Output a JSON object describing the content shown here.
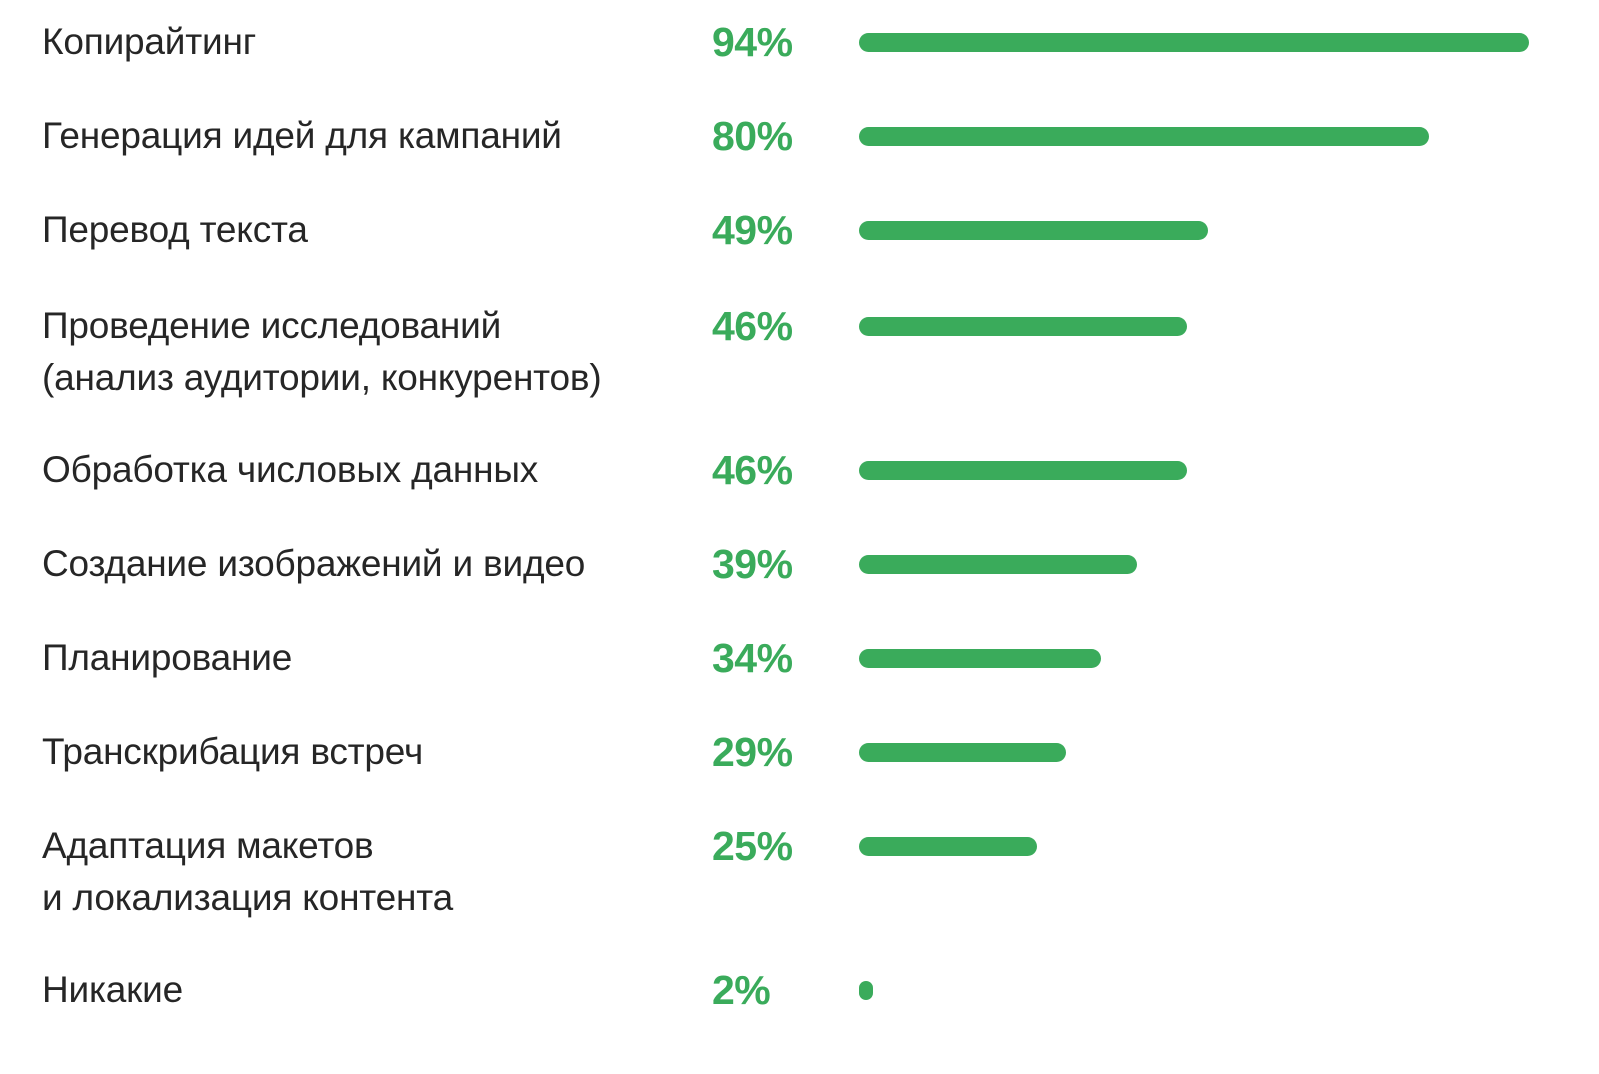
{
  "colors": {
    "bar": "#3aab5b",
    "value_text": "#3aab5b",
    "label_text": "#262626",
    "background": "#ffffff"
  },
  "chart_data": {
    "type": "bar",
    "orientation": "horizontal",
    "xlim": [
      0,
      94
    ],
    "grid": false,
    "categories": [
      "Копирайтинг",
      "Генерация идей для кампаний",
      "Перевод текста",
      "Проведение исследований\n(анализ аудитории, конкурентов)",
      "Обработка числовых данных",
      "Создание изображений и видео",
      "Планирование",
      "Транскрибация встреч",
      "Адаптация макетов\nи локализация контента",
      "Никакие"
    ],
    "values": [
      94,
      80,
      49,
      46,
      46,
      39,
      34,
      29,
      25,
      2
    ],
    "value_labels": [
      "94%",
      "80%",
      "49%",
      "46%",
      "46%",
      "39%",
      "34%",
      "29%",
      "25%",
      "2%"
    ]
  }
}
